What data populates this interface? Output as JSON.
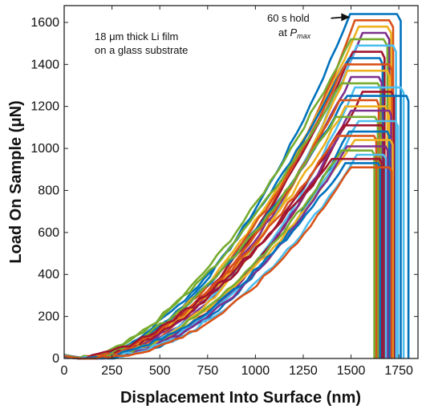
{
  "chart_data": {
    "type": "line",
    "xlabel": "Displacement Into Surface (nm)",
    "ylabel": "Load On Sample (μN)",
    "xlim": [
      0,
      1850
    ],
    "ylim": [
      0,
      1680
    ],
    "x_ticks": [
      0,
      250,
      500,
      750,
      1000,
      1250,
      1500,
      1750
    ],
    "y_ticks": [
      0,
      200,
      400,
      600,
      800,
      1000,
      1200,
      1400,
      1600
    ],
    "grid": false,
    "annotations": {
      "sample_line1": "18 μm thick Li film",
      "sample_line2": "on a glass substrate",
      "hold_line1": "60 s hold",
      "hold_line2_prefix": "at ",
      "hold_line2_var": "P",
      "hold_line2_sub": "max",
      "hold_arrow_from": [
        1395,
        1620
      ],
      "hold_arrow_to": [
        1495,
        1625
      ]
    },
    "series_colors": [
      "#0072BD",
      "#D95319",
      "#EDB120",
      "#7E2F8E",
      "#77AC30",
      "#4DBEEE",
      "#A2142F"
    ],
    "series": [
      {
        "pmax": 1640,
        "hold_start": 1495,
        "hold_end": 1740,
        "unload": 1760,
        "curve": "mid"
      },
      {
        "pmax": 1610,
        "hold_start": 1520,
        "hold_end": 1700,
        "unload": 1720,
        "curve": "soft"
      },
      {
        "pmax": 1580,
        "hold_start": 1540,
        "hold_end": 1690,
        "unload": 1710,
        "curve": "mid"
      },
      {
        "pmax": 1550,
        "hold_start": 1560,
        "hold_end": 1680,
        "unload": 1700,
        "curve": "soft"
      },
      {
        "pmax": 1520,
        "hold_start": 1500,
        "hold_end": 1670,
        "unload": 1690,
        "curve": "stiff"
      },
      {
        "pmax": 1490,
        "hold_start": 1530,
        "hold_end": 1720,
        "unload": 1735,
        "curve": "soft"
      },
      {
        "pmax": 1460,
        "hold_start": 1510,
        "hold_end": 1660,
        "unload": 1675,
        "curve": "mid"
      },
      {
        "pmax": 1430,
        "hold_start": 1490,
        "hold_end": 1650,
        "unload": 1665,
        "curve": "stiff"
      },
      {
        "pmax": 1400,
        "hold_start": 1470,
        "hold_end": 1700,
        "unload": 1715,
        "curve": "mid"
      },
      {
        "pmax": 1370,
        "hold_start": 1480,
        "hold_end": 1690,
        "unload": 1700,
        "curve": "soft"
      },
      {
        "pmax": 1340,
        "hold_start": 1500,
        "hold_end": 1645,
        "unload": 1660,
        "curve": "mid"
      },
      {
        "pmax": 1310,
        "hold_start": 1450,
        "hold_end": 1640,
        "unload": 1655,
        "curve": "stiff"
      },
      {
        "pmax": 1290,
        "hold_start": 1520,
        "hold_end": 1760,
        "unload": 1775,
        "curve": "soft"
      },
      {
        "pmax": 1270,
        "hold_start": 1560,
        "hold_end": 1710,
        "unload": 1725,
        "curve": "soft"
      },
      {
        "pmax": 1250,
        "hold_start": 1480,
        "hold_end": 1790,
        "unload": 1800,
        "curve": "stiff"
      },
      {
        "pmax": 1230,
        "hold_start": 1440,
        "hold_end": 1635,
        "unload": 1645,
        "curve": "mid"
      },
      {
        "pmax": 1200,
        "hold_start": 1470,
        "hold_end": 1680,
        "unload": 1690,
        "curve": "mid"
      },
      {
        "pmax": 1180,
        "hold_start": 1500,
        "hold_end": 1700,
        "unload": 1710,
        "curve": "soft"
      },
      {
        "pmax": 1150,
        "hold_start": 1420,
        "hold_end": 1625,
        "unload": 1640,
        "curve": "stiff"
      },
      {
        "pmax": 1130,
        "hold_start": 1540,
        "hold_end": 1730,
        "unload": 1745,
        "curve": "soft"
      },
      {
        "pmax": 1110,
        "hold_start": 1460,
        "hold_end": 1660,
        "unload": 1672,
        "curve": "mid"
      },
      {
        "pmax": 1080,
        "hold_start": 1490,
        "hold_end": 1690,
        "unload": 1700,
        "curve": "soft"
      },
      {
        "pmax": 1060,
        "hold_start": 1430,
        "hold_end": 1620,
        "unload": 1632,
        "curve": "stiff"
      },
      {
        "pmax": 1040,
        "hold_start": 1520,
        "hold_end": 1705,
        "unload": 1718,
        "curve": "mid"
      },
      {
        "pmax": 1010,
        "hold_start": 1480,
        "hold_end": 1680,
        "unload": 1692,
        "curve": "soft"
      },
      {
        "pmax": 990,
        "hold_start": 1450,
        "hold_end": 1610,
        "unload": 1622,
        "curve": "mid"
      },
      {
        "pmax": 970,
        "hold_start": 1530,
        "hold_end": 1670,
        "unload": 1682,
        "curve": "soft"
      },
      {
        "pmax": 950,
        "hold_start": 1400,
        "hold_end": 1650,
        "unload": 1660,
        "curve": "stiff"
      },
      {
        "pmax": 930,
        "hold_start": 1470,
        "hold_end": 1640,
        "unload": 1652,
        "curve": "mid"
      },
      {
        "pmax": 910,
        "hold_start": 1500,
        "hold_end": 1700,
        "unload": 1712,
        "curve": "soft"
      }
    ]
  }
}
